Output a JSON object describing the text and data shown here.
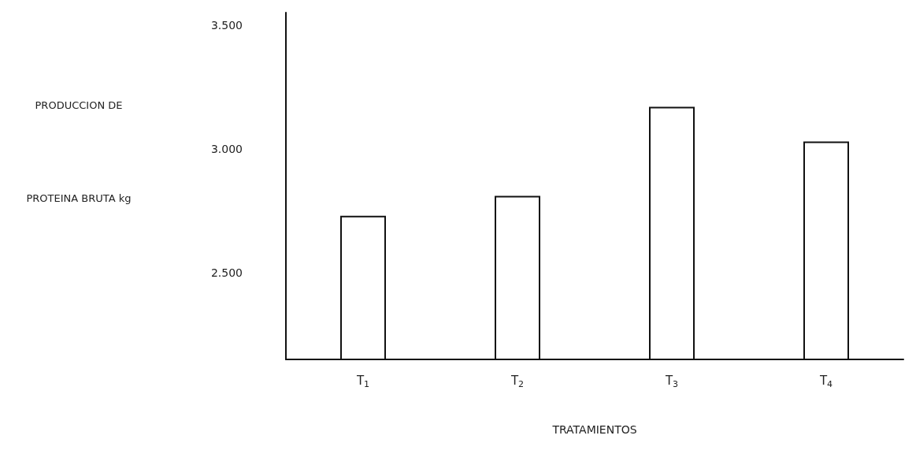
{
  "chart_data": {
    "type": "bar",
    "categories": [
      "T$_{1}$",
      "T$_{2}$",
      "T$_{3}$",
      "T$_{4}$"
    ],
    "values": [
      2730,
      2810,
      3170,
      3030
    ],
    "color": "#ffffff",
    "ylim": [
      2150,
      3550
    ],
    "yticks": [
      {
        "value": 2500,
        "label": "2.500"
      },
      {
        "value": 3000,
        "label": "3.000"
      },
      {
        "value": 3500,
        "label": "3.500"
      }
    ],
    "ylabel": "PRODUCCION DE PROTEINA BRUTA kg",
    "xlabel": "TRATAMIENTOS",
    "grid": false
  }
}
